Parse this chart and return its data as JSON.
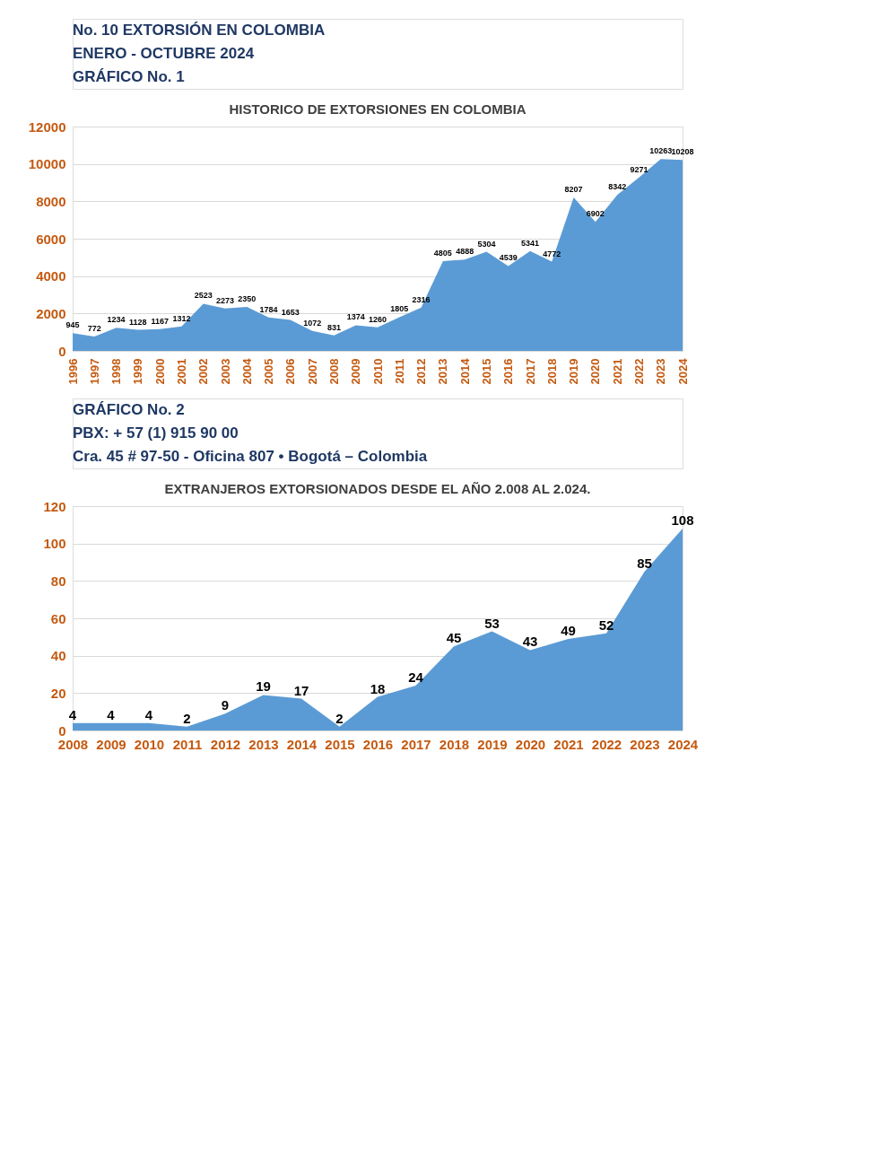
{
  "chart_data": [
    {
      "type": "area",
      "title": "HISTORICO DE EXTORSIONES EN COLOMBIA",
      "annotations": [
        "No. 10 EXTORSIÓN EN COLOMBIA",
        "ENERO - OCTUBRE 2024",
        "GRÁFICO No. 1"
      ],
      "categories": [
        "1996",
        "1997",
        "1998",
        "1999",
        "2000",
        "2001",
        "2002",
        "2003",
        "2004",
        "2005",
        "2006",
        "2007",
        "2008",
        "2009",
        "2010",
        "2011",
        "2012",
        "2013",
        "2014",
        "2015",
        "2016",
        "2017",
        "2018",
        "2019",
        "2020",
        "2021",
        "2022",
        "2023",
        "2024"
      ],
      "series": [
        {
          "color": "#5b9bd5",
          "values": [
            945,
            772,
            1234,
            1128,
            1167,
            1312,
            2523,
            2273,
            2350,
            1784,
            1653,
            1072,
            831,
            1374,
            1260,
            1805,
            2316,
            4805,
            4888,
            5304,
            4539,
            5341,
            4772,
            8207,
            6902,
            8342,
            9271,
            10263,
            10208
          ]
        }
      ],
      "ylim": [
        0,
        12000
      ],
      "yticks": [
        0,
        2000,
        4000,
        6000,
        8000,
        10000,
        12000
      ],
      "grid": "y",
      "data_labels": true
    },
    {
      "type": "area",
      "title": "EXTRANJEROS EXTORSIONADOS DESDE EL AÑO 2.008 AL 2.024.",
      "annotations": [
        "GRÁFICO No. 2",
        "PBX: + 57 (1) 915 90 00",
        "Cra. 45 # 97-50 - Oficina 807 • Bogotá – Colombia"
      ],
      "categories": [
        "2008",
        "2009",
        "2010",
        "2011",
        "2012",
        "2013",
        "2014",
        "2015",
        "2016",
        "2017",
        "2018",
        "2019",
        "2020",
        "2021",
        "2022",
        "2023",
        "2024"
      ],
      "series": [
        {
          "color": "#5b9bd5",
          "values": [
            4,
            4,
            4,
            2,
            9,
            19,
            17,
            2,
            18,
            24,
            45,
            53,
            43,
            49,
            52,
            85,
            108
          ]
        }
      ],
      "ylim": [
        0,
        120
      ],
      "yticks": [
        0,
        20,
        40,
        60,
        80,
        100,
        120
      ],
      "grid": "y",
      "data_labels": true
    }
  ]
}
